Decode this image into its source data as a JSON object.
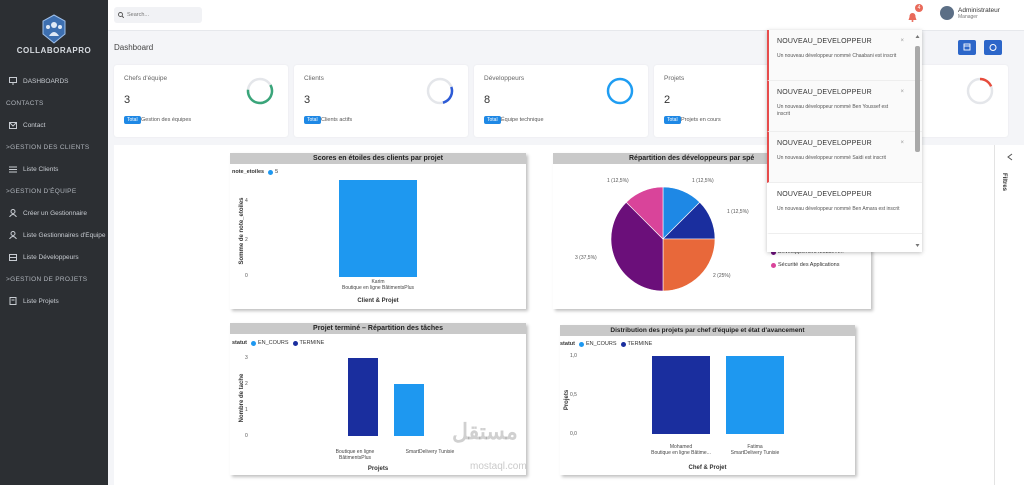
{
  "app": {
    "logo_text": "COLLABORAPRO"
  },
  "sidebar": {
    "items": [
      {
        "label": "DASHBOARDS",
        "icon": "monitor-icon"
      },
      {
        "section": "CONTACTS"
      },
      {
        "label": "Contact",
        "icon": "mail-icon"
      },
      {
        "section": ">GESTION DES CLIENTS"
      },
      {
        "label": "Liste Clients",
        "icon": "list-icon"
      },
      {
        "section": ">GESTION D'ÉQUIPE"
      },
      {
        "label": "Créer un Gestionnaire",
        "icon": "user-icon"
      },
      {
        "label": "Liste Gestionnaires d'Équipe",
        "icon": "user-icon"
      },
      {
        "label": "Liste Développeurs",
        "icon": "list-icon"
      },
      {
        "section": ">GESTION DE PROJETS"
      },
      {
        "label": "Liste Projets",
        "icon": "doc-icon"
      }
    ]
  },
  "topbar": {
    "search_placeholder": "Search...",
    "notif_count": "4",
    "user_name": "Administrateur",
    "user_role": "Manager"
  },
  "page": {
    "title": "Dashboard"
  },
  "kpis": [
    {
      "label": "Chefs d'équipe",
      "value": "3",
      "tag": "Total",
      "sub": "Gestion des équipes",
      "color": "#3aa57a"
    },
    {
      "label": "Clients",
      "value": "3",
      "tag": "Total",
      "sub": "Clients actifs",
      "color": "#2d5bd6"
    },
    {
      "label": "Développeurs",
      "value": "8",
      "tag": "Total",
      "sub": "Équipe technique",
      "color": "#1f9df2"
    },
    {
      "label": "Projets",
      "value": "2",
      "tag": "Total",
      "sub": "Projets en cours",
      "color": "#e74c3c"
    }
  ],
  "filters": {
    "label": "Filtres"
  },
  "charts": {
    "scores": {
      "title": "Scores en étoiles des clients par projet",
      "legend_title": "note_etoiles",
      "legend_item": "5",
      "ylabel": "Somme de note_etoiles",
      "xlabel": "Client & Projet",
      "ticks": [
        "4",
        "2",
        "0"
      ],
      "cat_line1": "Karim",
      "cat_line2": "Boutique en ligne BâtimentsPlus"
    },
    "pie": {
      "title": "Répartition des développeurs par spé",
      "labels": [
        "1 (12,5%)",
        "1 (12,5%)",
        "1 (12,5%)",
        "3 (37,5%)",
        "2 (25%)"
      ],
      "legend_items": [
        "Développement Mobile A...",
        "Sécurité des Applications"
      ]
    },
    "tasks": {
      "title": "Projet terminé – Répartition des tâches",
      "legend_title": "statut",
      "legend_items": [
        "EN_COURS",
        "TERMINE"
      ],
      "ylabel": "Nombre de tache",
      "xlabel": "Projets",
      "ticks": [
        "3",
        "2",
        "1",
        "0"
      ],
      "cat1": "Boutique en ligne BâtimentsPlus",
      "cat2": "SmartDelivery Tunisie"
    },
    "dist": {
      "title": "Distribution des projets par chef d'équipe et état d'avancement",
      "legend_title": "statut",
      "legend_items": [
        "EN_COURS",
        "TERMINE"
      ],
      "ylabel": "Projets",
      "xlabel": "Chef & Projet",
      "ticks": [
        "1,0",
        "0,5",
        "0,0"
      ],
      "cat1_line1": "Mohamed",
      "cat1_line2": "Boutique en ligne Bâtime...",
      "cat2_line1": "Fatima",
      "cat2_line2": "SmartDelivery Tunisie"
    }
  },
  "chart_data": [
    {
      "type": "bar",
      "title": "Scores en étoiles des clients par projet",
      "categories": [
        "Karim Boutique en ligne BâtimentsPlus"
      ],
      "values": [
        5
      ],
      "xlabel": "Client & Projet",
      "ylabel": "Somme de note_etoiles",
      "ylim": [
        0,
        5
      ]
    },
    {
      "type": "pie",
      "title": "Répartition des développeurs par spé",
      "slices": [
        {
          "value": 1,
          "label": "1 (12,5%)",
          "color": "#1e88e5"
        },
        {
          "value": 1,
          "label": "1 (12,5%)",
          "color": "#1a2e9e"
        },
        {
          "value": 2,
          "label": "2 (25%)",
          "color": "#e8683a"
        },
        {
          "value": 3,
          "label": "3 (37,5%)",
          "color": "#6b0f7a"
        },
        {
          "value": 1,
          "label": "1 (12,5%)",
          "color": "#d9449a"
        }
      ]
    },
    {
      "type": "bar",
      "title": "Projet terminé – Répartition des tâches",
      "categories": [
        "Boutique en ligne BâtimentsPlus",
        "SmartDelivery Tunisie"
      ],
      "series": [
        {
          "name": "EN_COURS",
          "values": [
            0,
            2
          ]
        },
        {
          "name": "TERMINE",
          "values": [
            3,
            0
          ]
        }
      ],
      "xlabel": "Projets",
      "ylabel": "Nombre de tache",
      "ylim": [
        0,
        3
      ]
    },
    {
      "type": "bar",
      "title": "Distribution des projets par chef d'équipe et état d'avancement",
      "categories": [
        "Mohamed Boutique en ligne Bâtime...",
        "Fatima SmartDelivery Tunisie"
      ],
      "series": [
        {
          "name": "EN_COURS",
          "values": [
            0,
            1
          ]
        },
        {
          "name": "TERMINE",
          "values": [
            1,
            0
          ]
        }
      ],
      "xlabel": "Chef & Projet",
      "ylabel": "Projets",
      "ylim": [
        0,
        1
      ]
    }
  ],
  "notifications": [
    {
      "title": "NOUVEAU_DEVELOPPEUR",
      "body": "Un nouveau développeur nommé Chaabani est inscrit",
      "unread": true
    },
    {
      "title": "NOUVEAU_DEVELOPPEUR",
      "body": "Un nouveau développeur nommé Ben Youssef est inscrit",
      "unread": true
    },
    {
      "title": "NOUVEAU_DEVELOPPEUR",
      "body": "Un nouveau développeur nommé Saidi est inscrit",
      "unread": true
    },
    {
      "title": "NOUVEAU_DEVELOPPEUR",
      "body": "Un nouveau développeur nommé Ben Amara est inscrit",
      "unread": false
    }
  ],
  "watermark": {
    "arabic": "مستقل",
    "latin": "mostaql.com"
  }
}
